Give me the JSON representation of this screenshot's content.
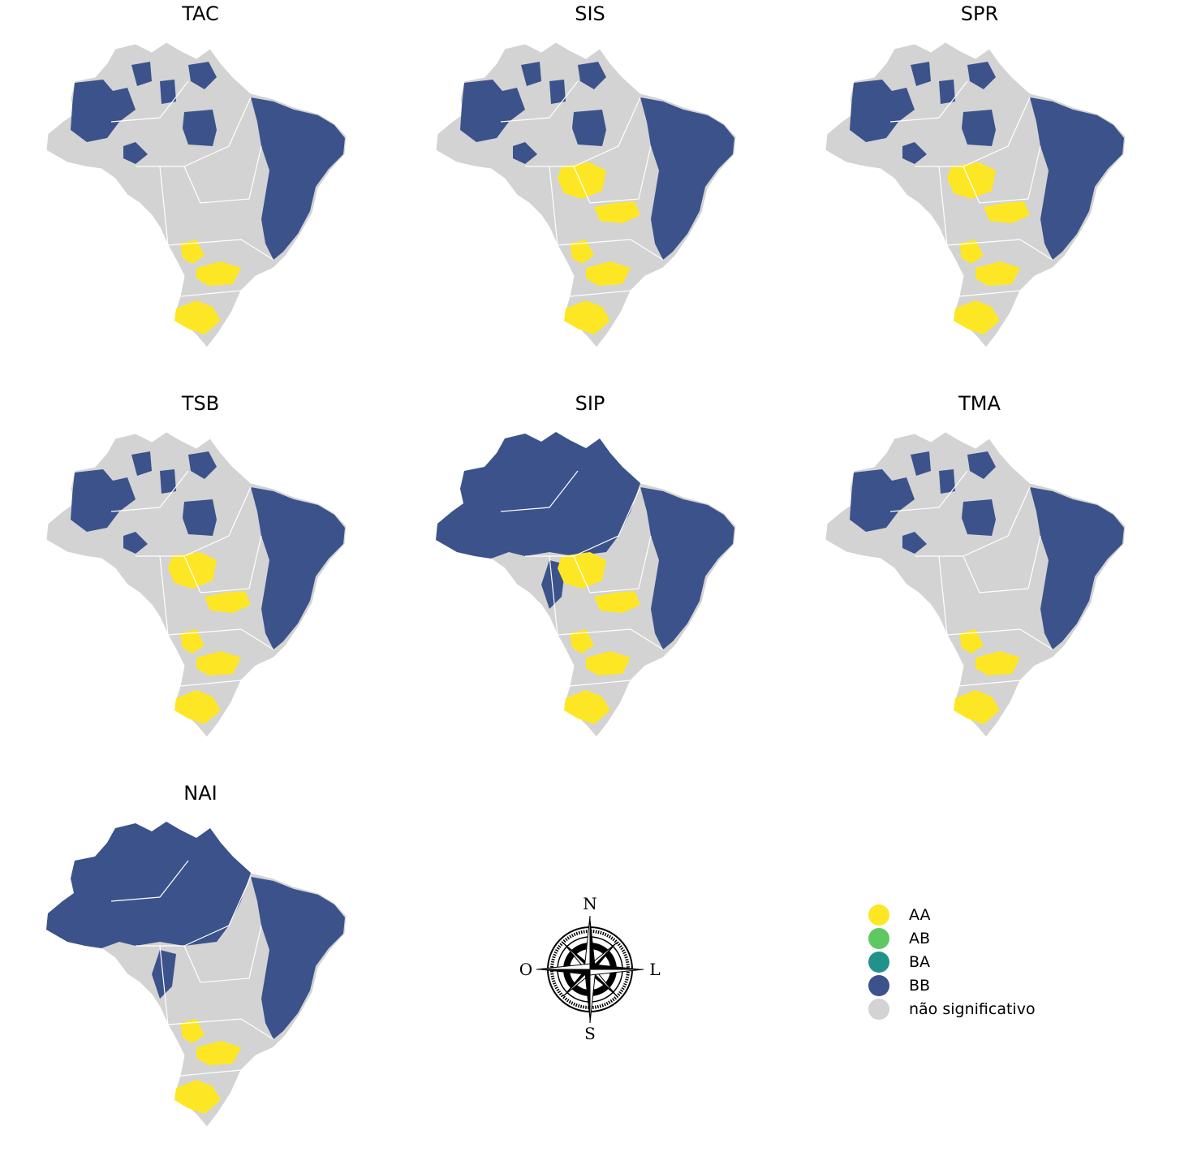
{
  "colors": {
    "AA": "#fde725",
    "AB": "#5ec962",
    "BA": "#21918c",
    "BB": "#3b528b",
    "ns": "#d3d3d3",
    "border": "#ffffff"
  },
  "panels": [
    {
      "title": "TAC",
      "patterns": [
        "bb_north",
        "bb_northeast",
        "aa_south"
      ]
    },
    {
      "title": "SIS",
      "patterns": [
        "bb_north",
        "bb_northeast",
        "aa_center",
        "aa_south"
      ]
    },
    {
      "title": "SPR",
      "patterns": [
        "bb_north",
        "bb_northeast",
        "aa_center",
        "aa_south"
      ]
    },
    {
      "title": "TSB",
      "patterns": [
        "bb_north",
        "bb_northeast",
        "aa_center",
        "aa_south"
      ]
    },
    {
      "title": "SIP",
      "patterns": [
        "bb_all_north",
        "bb_northeast",
        "aa_center",
        "aa_south"
      ]
    },
    {
      "title": "TMA",
      "patterns": [
        "bb_north",
        "bb_northeast",
        "aa_south"
      ]
    },
    {
      "title": "NAI",
      "patterns": [
        "bb_all_north",
        "bb_northeast",
        "aa_south"
      ]
    }
  ],
  "compass": {
    "n": "N",
    "s": "S",
    "e": "L",
    "w": "O",
    "icon": "compass-rose-icon"
  },
  "legend": {
    "items": [
      {
        "label": "AA",
        "color": "#fde725"
      },
      {
        "label": "AB",
        "color": "#5ec962"
      },
      {
        "label": "BA",
        "color": "#21918c"
      },
      {
        "label": "BB",
        "color": "#3b528b"
      },
      {
        "label": "não significativo",
        "color": "#d3d3d3"
      }
    ]
  }
}
